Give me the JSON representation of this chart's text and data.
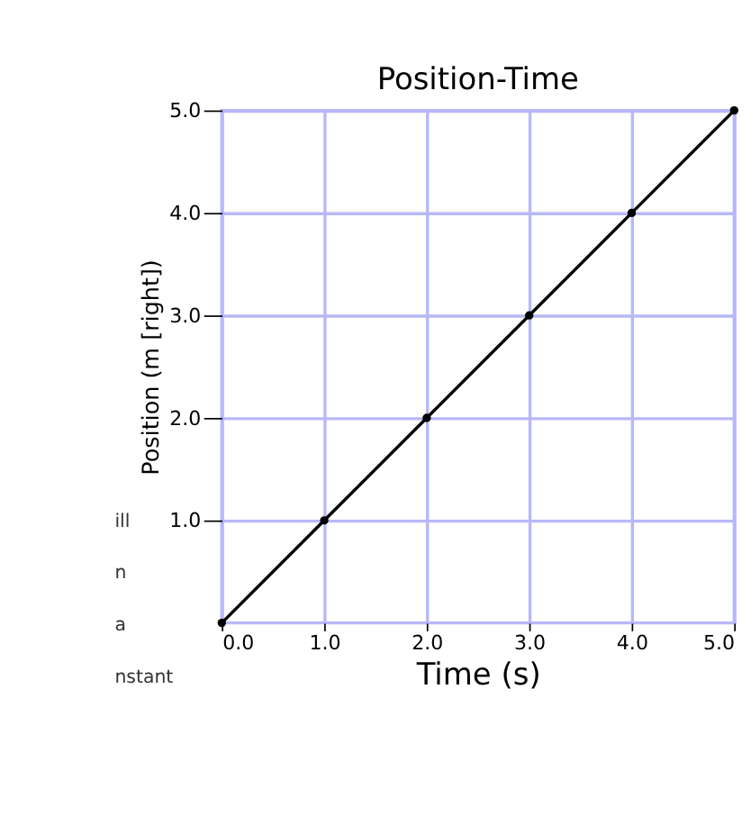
{
  "chart_data": {
    "type": "line",
    "title": "Position-Time",
    "xlabel": "Time (s)",
    "ylabel": "Position (m [right])",
    "x": [
      0,
      1,
      2,
      3,
      4,
      5
    ],
    "series": [
      {
        "color": "#000000",
        "values": [
          0,
          1,
          2,
          3,
          4,
          5
        ]
      }
    ],
    "xlim": [
      0,
      5
    ],
    "ylim": [
      0,
      5
    ],
    "xticks": [
      {
        "value": 0,
        "label": "0.0"
      },
      {
        "value": 1,
        "label": "1.0"
      },
      {
        "value": 2,
        "label": "2.0"
      },
      {
        "value": 3,
        "label": "3.0"
      },
      {
        "value": 4,
        "label": "4.0"
      },
      {
        "value": 5,
        "label": "5.0"
      }
    ],
    "yticks": [
      {
        "value": 1,
        "label": "1.0"
      },
      {
        "value": 2,
        "label": "2.0"
      },
      {
        "value": 3,
        "label": "3.0"
      },
      {
        "value": 4,
        "label": "4.0"
      },
      {
        "value": 5,
        "label": "5.0"
      }
    ],
    "grid": true,
    "marker": "circle",
    "line_style": "solid",
    "legend": false,
    "annotations": [
      "ill",
      "n",
      "a",
      "nstant"
    ]
  }
}
